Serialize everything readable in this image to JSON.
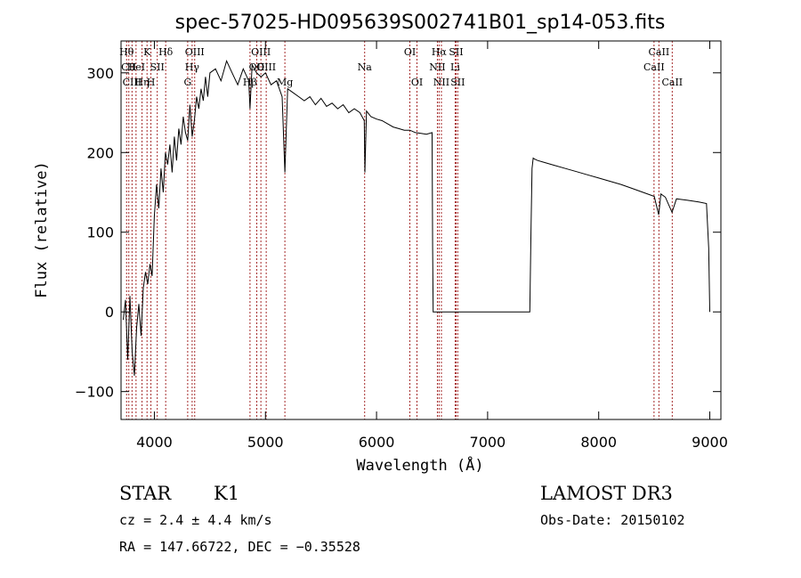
{
  "chart_data": {
    "type": "line",
    "title": "spec-57025-HD095639S002741B01_sp14-053.fits",
    "xlabel": "Wavelength (Å)",
    "ylabel": "Flux (relative)",
    "xlim": [
      3700,
      9100
    ],
    "ylim": [
      -135,
      340
    ],
    "xticks": [
      4000,
      5000,
      6000,
      7000,
      8000,
      9000
    ],
    "xtick_labels": [
      "4000",
      "5000",
      "6000",
      "7000",
      "8000",
      "9000"
    ],
    "yticks": [
      -100,
      0,
      100,
      200,
      300
    ],
    "ytick_labels": [
      "−100",
      "0",
      "100",
      "200",
      "300"
    ],
    "grid": false,
    "line_color": "#000000",
    "marker_color": "#a52a2a",
    "series": [
      {
        "name": "flux",
        "x": [
          3720,
          3740,
          3760,
          3780,
          3800,
          3820,
          3840,
          3860,
          3880,
          3900,
          3920,
          3940,
          3960,
          3980,
          4000,
          4020,
          4040,
          4060,
          4080,
          4100,
          4120,
          4140,
          4160,
          4180,
          4200,
          4220,
          4240,
          4260,
          4280,
          4300,
          4320,
          4340,
          4360,
          4380,
          4400,
          4420,
          4440,
          4460,
          4480,
          4500,
          4550,
          4600,
          4650,
          4700,
          4750,
          4800,
          4850,
          4861,
          4880,
          4920,
          4960,
          5000,
          5050,
          5100,
          5150,
          5175,
          5200,
          5250,
          5300,
          5350,
          5400,
          5450,
          5500,
          5550,
          5600,
          5650,
          5700,
          5750,
          5800,
          5850,
          5890,
          5895,
          5910,
          5950,
          6000,
          6050,
          6100,
          6150,
          6200,
          6250,
          6300,
          6350,
          6400,
          6450,
          6500,
          6505,
          6510,
          6520,
          6600,
          6700,
          6800,
          6900,
          7000,
          7100,
          7200,
          7300,
          7350,
          7380,
          7390,
          7400,
          7410,
          7420,
          7450,
          7500,
          7600,
          7700,
          7800,
          7900,
          8000,
          8100,
          8200,
          8300,
          8400,
          8500,
          8540,
          8560,
          8600,
          8660,
          8700,
          8800,
          8900,
          8970,
          8990,
          9000
        ],
        "y": [
          -10,
          15,
          -60,
          20,
          -50,
          -80,
          -20,
          10,
          -30,
          30,
          50,
          35,
          60,
          45,
          120,
          160,
          130,
          180,
          150,
          200,
          185,
          210,
          175,
          220,
          190,
          230,
          210,
          245,
          225,
          215,
          260,
          220,
          240,
          270,
          255,
          280,
          265,
          295,
          270,
          300,
          305,
          290,
          315,
          300,
          285,
          305,
          290,
          255,
          310,
          300,
          295,
          300,
          285,
          290,
          270,
          175,
          280,
          275,
          270,
          265,
          270,
          260,
          268,
          258,
          262,
          255,
          260,
          250,
          255,
          250,
          240,
          175,
          252,
          245,
          242,
          240,
          236,
          232,
          230,
          228,
          228,
          225,
          224,
          223,
          225,
          80,
          0,
          0,
          0,
          0,
          0,
          0,
          0,
          0,
          0,
          0,
          0,
          0,
          100,
          180,
          193,
          192,
          190,
          188,
          184,
          180,
          176,
          172,
          168,
          164,
          160,
          155,
          150,
          145,
          122,
          148,
          144,
          125,
          142,
          140,
          138,
          136,
          80,
          0
        ]
      }
    ],
    "line_markers": [
      {
        "x": 3750,
        "label": "Hθ",
        "row": 1
      },
      {
        "x": 3770,
        "label": "CII",
        "row": 2
      },
      {
        "x": 3799,
        "label": "CIII",
        "row": 3
      },
      {
        "x": 3835,
        "label": "HeI",
        "row": 2
      },
      {
        "x": 3889,
        "label": "Hη",
        "row": 3
      },
      {
        "x": 3934,
        "label": "K",
        "row": 1
      },
      {
        "x": 3969,
        "label": "H",
        "row": 3
      },
      {
        "x": 4026,
        "label": "SII",
        "row": 2
      },
      {
        "x": 4102,
        "label": "Hδ",
        "row": 1
      },
      {
        "x": 4300,
        "label": "G",
        "row": 3
      },
      {
        "x": 4340,
        "label": "Hγ",
        "row": 2
      },
      {
        "x": 4363,
        "label": "OIII",
        "row": 1
      },
      {
        "x": 4861,
        "label": "Hβ",
        "row": 3
      },
      {
        "x": 4922,
        "label": "OII",
        "row": 2
      },
      {
        "x": 4959,
        "label": "OIII",
        "row": 1
      },
      {
        "x": 5007,
        "label": "OIII",
        "row": 2
      },
      {
        "x": 5175,
        "label": "Mg",
        "row": 3
      },
      {
        "x": 5893,
        "label": "Na",
        "row": 2
      },
      {
        "x": 6300,
        "label": "OI",
        "row": 1
      },
      {
        "x": 6364,
        "label": "OI",
        "row": 3
      },
      {
        "x": 6548,
        "label": "NII",
        "row": 2
      },
      {
        "x": 6563,
        "label": "Hα",
        "row": 1
      },
      {
        "x": 6584,
        "label": "NII",
        "row": 3
      },
      {
        "x": 6708,
        "label": "Li",
        "row": 2
      },
      {
        "x": 6716,
        "label": "SII",
        "row": 1
      },
      {
        "x": 6731,
        "label": "SII",
        "row": 3
      },
      {
        "x": 8498,
        "label": "CaII",
        "row": 2
      },
      {
        "x": 8542,
        "label": "CaII",
        "row": 1
      },
      {
        "x": 8662,
        "label": "CaII",
        "row": 3
      }
    ]
  },
  "info": {
    "class_label": "STAR",
    "subclass_label": "K1",
    "cz_text": "cz = 2.4 ± 4.4 km/s",
    "coords_text": "RA = 147.66722, DEC =  −0.35528",
    "survey_label": "LAMOST DR3",
    "obs_date_text": "Obs-Date: 20150102"
  }
}
